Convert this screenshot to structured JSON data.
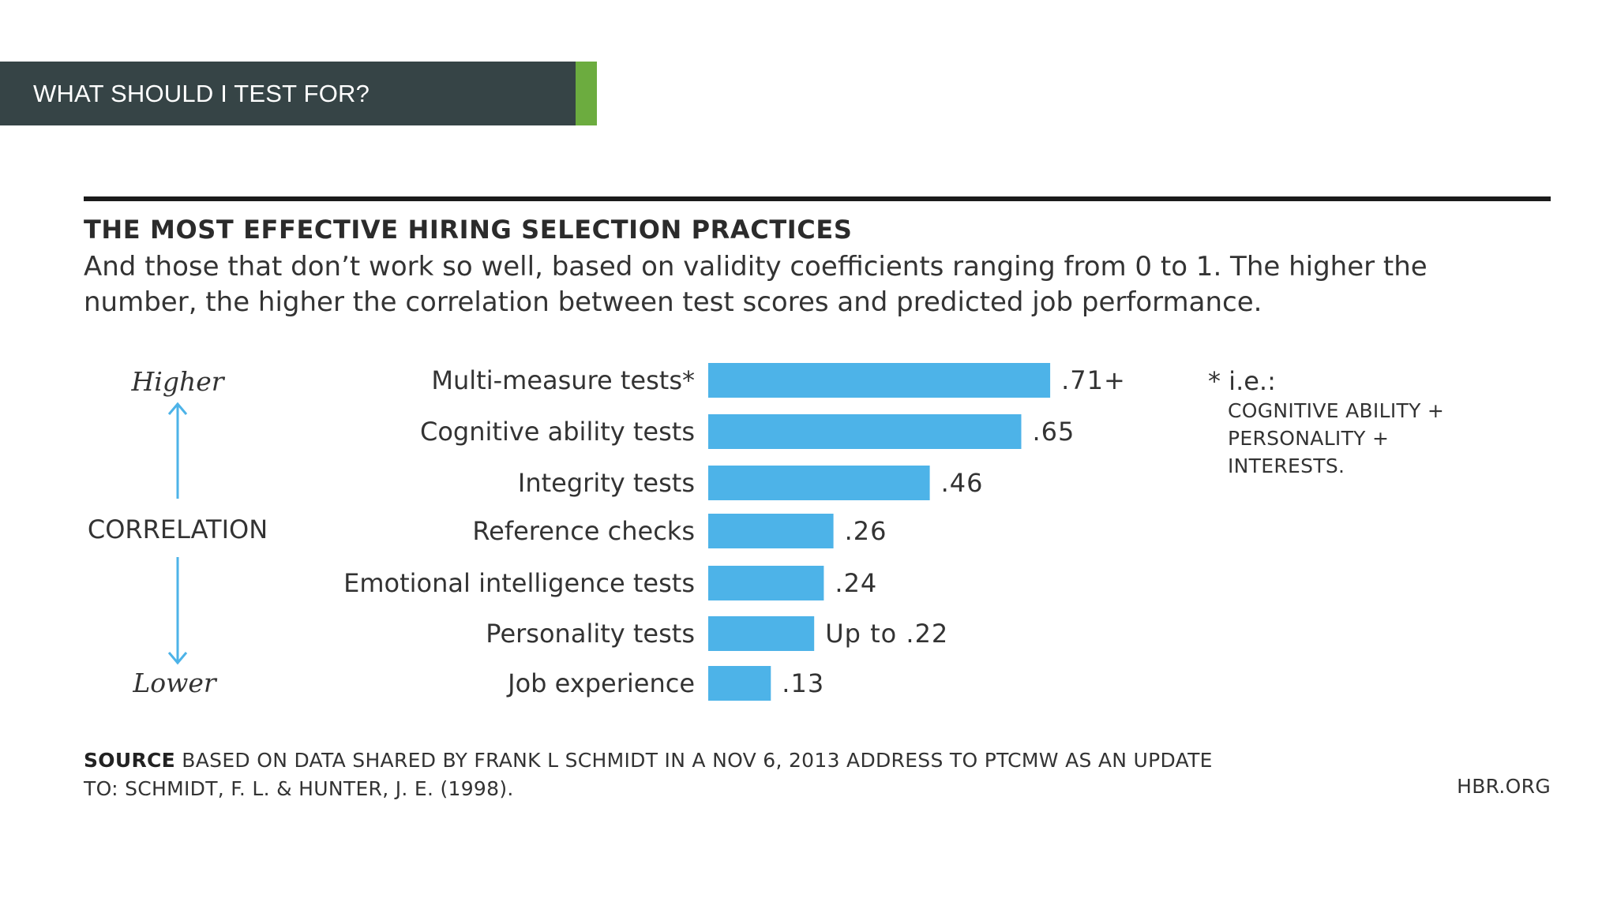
{
  "slide": {
    "title": "WHAT SHOULD I TEST FOR?",
    "colors": {
      "banner": "#364446",
      "accent": "#6cac3f",
      "bar": "#4db3e8",
      "arrow": "#4db3e8"
    }
  },
  "chart_data": {
    "type": "bar",
    "orientation": "horizontal",
    "title": "THE MOST EFFECTIVE HIRING SELECTION PRACTICES",
    "subtitle": "And those that don’t work so well, based on validity coefficients ranging from 0 to 1. The higher the number, the higher the correlation between test scores and predicted job performance.",
    "categories": [
      "Multi-measure tests*",
      "Cognitive ability tests",
      "Integrity tests",
      "Reference checks",
      "Emotional intelligence tests",
      "Personality tests",
      "Job experience"
    ],
    "values": [
      0.71,
      0.65,
      0.46,
      0.26,
      0.24,
      0.22,
      0.13
    ],
    "value_labels": [
      ".71+",
      ".65",
      ".46",
      ".26",
      ".24",
      "Up to .22",
      ".13"
    ],
    "xlim": [
      0,
      1
    ],
    "axis": {
      "label": "CORRELATION",
      "high": "Higher",
      "low": "Lower"
    },
    "note": {
      "head": "* i.e.:",
      "lines": [
        "COGNITIVE ABILITY +",
        "PERSONALITY +",
        "INTERESTS."
      ]
    },
    "source_label": "SOURCE",
    "source_text": "BASED ON DATA SHARED BY FRANK L SCHMIDT IN A NOV 6, 2013 ADDRESS TO PTCMW AS AN UPDATE TO: SCHMIDT, F. L. & HUNTER, J. E. (1998).",
    "credit": "HBR.ORG"
  }
}
